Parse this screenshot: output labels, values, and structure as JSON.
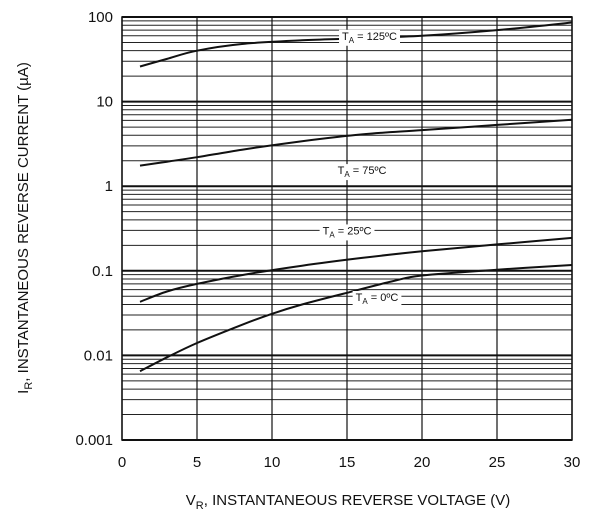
{
  "chart_data": {
    "type": "line",
    "title": "",
    "xlabel": {
      "main": "V",
      "sub": "R",
      "rest": ", INSTANTANEOUS REVERSE VOLTAGE (V)"
    },
    "ylabel": {
      "main": "I",
      "sub": "R",
      "rest": ", INSTANTANEOUS REVERSE CURRENT (µA)"
    },
    "xlim": [
      0,
      30
    ],
    "ylim": [
      0.001,
      100
    ],
    "yscale": "log",
    "grid": true,
    "x_ticks": [
      0,
      5,
      10,
      15,
      20,
      25,
      30
    ],
    "x_tick_labels": [
      "0",
      "5",
      "10",
      "15",
      "20",
      "25",
      "30"
    ],
    "y_ticks": [
      0.001,
      0.01,
      0.1,
      1,
      10,
      100
    ],
    "y_tick_labels": [
      "0.001",
      "0.01",
      "0.1",
      "1",
      "10",
      "100"
    ],
    "series": [
      {
        "label": {
          "main": "T",
          "sub": "A",
          "rest": " = 125ºC"
        },
        "label_at": [
          16.5,
          60
        ],
        "x": [
          1.2,
          3,
          5,
          8,
          12,
          16,
          20,
          25,
          30
        ],
        "y": [
          26,
          32,
          40,
          48,
          53,
          56,
          60,
          70,
          86
        ]
      },
      {
        "label": {
          "main": "T",
          "sub": "A",
          "rest": " = 75ºC"
        },
        "label_at": [
          16,
          1.55
        ],
        "x": [
          1.2,
          3,
          5,
          8,
          12,
          16,
          20,
          25,
          30
        ],
        "y": [
          1.75,
          1.95,
          2.2,
          2.7,
          3.4,
          4.1,
          4.6,
          5.3,
          6.1
        ]
      },
      {
        "label": {
          "main": "T",
          "sub": "A",
          "rest": " = 25ºC"
        },
        "label_at": [
          15,
          0.3
        ],
        "x": [
          1.2,
          3,
          5,
          8,
          12,
          16,
          20,
          25,
          30
        ],
        "y": [
          0.043,
          0.057,
          0.07,
          0.089,
          0.115,
          0.142,
          0.17,
          0.205,
          0.245
        ]
      },
      {
        "label": {
          "main": "T",
          "sub": "A",
          "rest": " = 0ºC"
        },
        "label_at": [
          17,
          0.049
        ],
        "x": [
          1.2,
          3,
          5,
          8,
          10,
          12,
          15,
          18,
          20,
          25,
          30
        ],
        "y": [
          0.0065,
          0.0095,
          0.014,
          0.023,
          0.031,
          0.04,
          0.055,
          0.075,
          0.088,
          0.103,
          0.117
        ]
      }
    ]
  }
}
